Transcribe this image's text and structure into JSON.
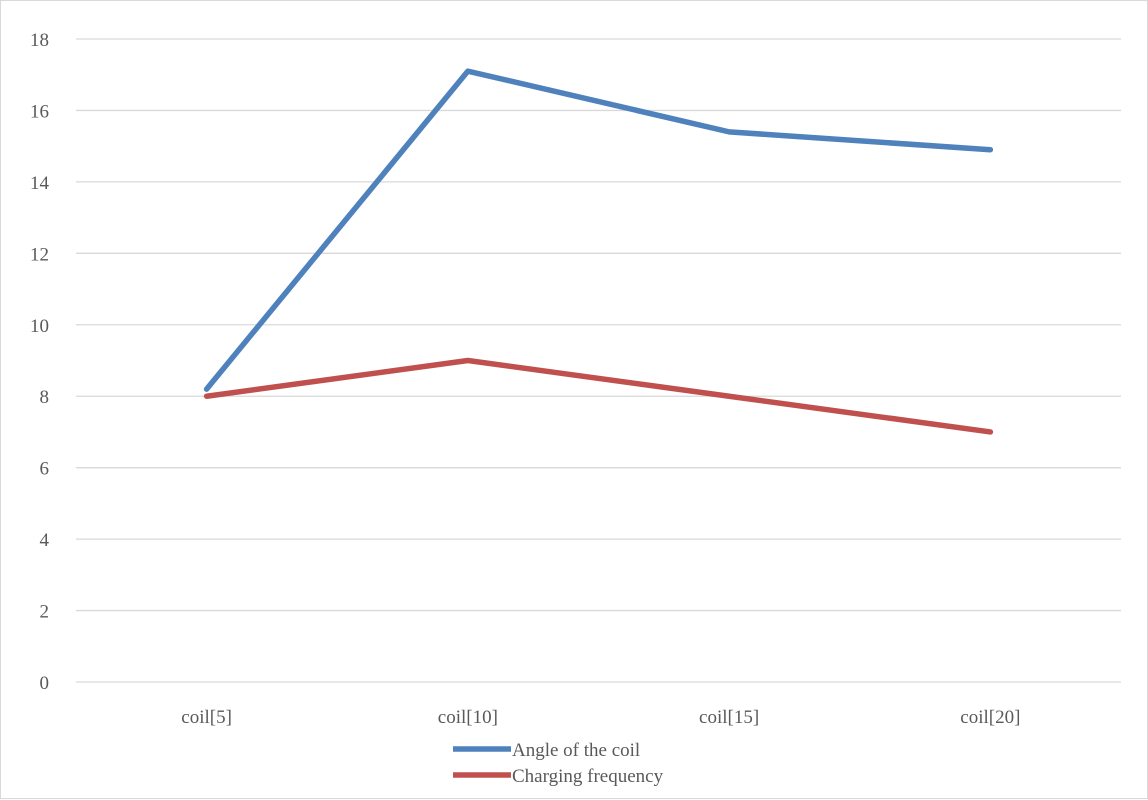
{
  "chart_data": {
    "type": "line",
    "categories": [
      "coil[5]",
      "coil[10]",
      "coil[15]",
      "coil[20]"
    ],
    "series": [
      {
        "name": "Angle of the coil",
        "values": [
          8.2,
          17.1,
          15.4,
          14.9
        ],
        "color": "#4f81bd"
      },
      {
        "name": "Charging frequency",
        "values": [
          8,
          9,
          8,
          7
        ],
        "color": "#c0504d"
      }
    ],
    "y_ticks": [
      "0",
      "2",
      "4",
      "6",
      "8",
      "10",
      "12",
      "14",
      "16",
      "18"
    ],
    "ylim": [
      0,
      18
    ],
    "grid": true,
    "legend_position": "bottom"
  }
}
